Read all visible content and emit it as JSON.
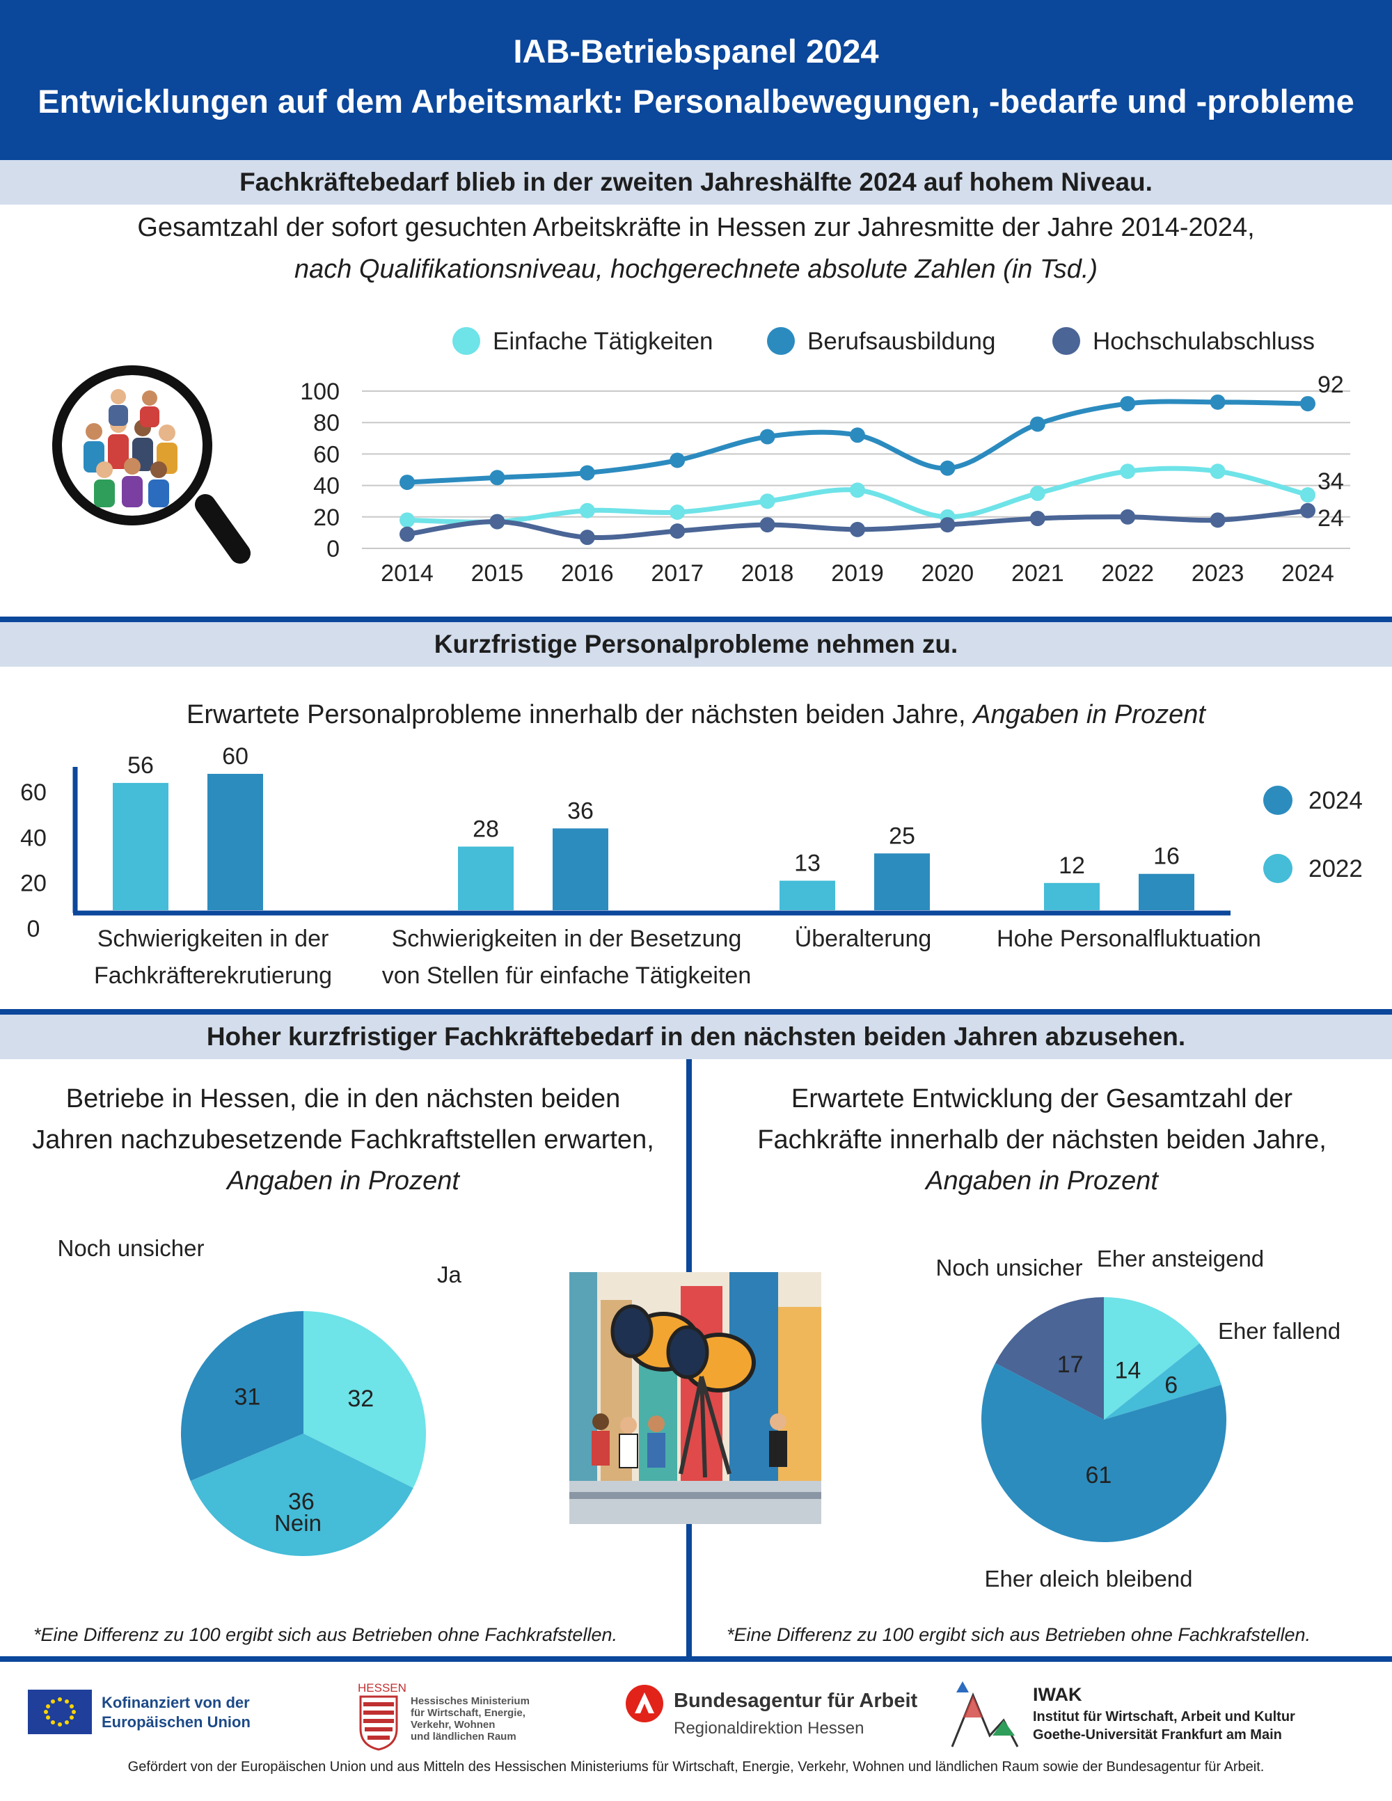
{
  "header": {
    "title": "IAB-Betriebspanel 2024",
    "subtitle": "Entwicklungen auf dem Arbeitsmarkt: Personalbewegungen, -bedarfe und -probleme"
  },
  "section1": {
    "band": "Fachkräftebedarf blieb in der zweiten Jahreshälfte 2024 auf hohem Niveau.",
    "caption_line1": "Gesamtzahl der sofort gesuchten Arbeitskräfte in Hessen zur Jahresmitte der Jahre 2014-2024,",
    "caption_line2": "nach Qualifikationsniveau, hochgerechnete absolute Zahlen (in Tsd.)"
  },
  "section2": {
    "band": "Kurzfristige Personalprobleme nehmen zu.",
    "caption_main": "Erwartete Personalprobleme innerhalb der nächsten beiden Jahre, ",
    "caption_italic": "Angaben in Prozent"
  },
  "section3": {
    "band": "Hoher kurzfristiger Fachkräftebedarf in den nächsten beiden Jahren abzusehen.",
    "left_caption_1": "Betriebe in Hessen, die in den nächsten beiden",
    "left_caption_2": "Jahren nachzubesetzende Fachkraftstellen erwarten,",
    "left_caption_3": "Angaben in Prozent",
    "right_caption_1": "Erwartete Entwicklung der Gesamtzahl der",
    "right_caption_2": "Fachkräfte innerhalb der nächsten beiden Jahre,",
    "right_caption_3": "Angaben in Prozent",
    "footnote_left": "*Eine Differenz zu 100 ergibt sich aus Betrieben ohne Fachkrafstellen.",
    "footnote_right": "*Eine Differenz zu 100 ergibt sich aus Betrieben ohne Fachkrafstellen."
  },
  "footer": {
    "eu_line1": "Kofinanziert von der",
    "eu_line2": "Europäischen Union",
    "hessen_top": "HESSEN",
    "hessen_1": "Hessisches Ministerium",
    "hessen_2": "für Wirtschaft, Energie,",
    "hessen_3": "Verkehr, Wohnen",
    "hessen_4": "und ländlichen Raum",
    "ba_1": "Bundesagentur für Arbeit",
    "ba_2": "Regionaldirektion Hessen",
    "iwak_1": "IWAK",
    "iwak_2": "Institut für Wirtschaft, Arbeit und Kultur",
    "iwak_3": "Goethe-Universität Frankfurt am Main",
    "funding": "Gefördert von der Europäischen Union und aus Mitteln des Hessischen Ministeriums für Wirtschaft, Energie, Verkehr, Wohnen und ländlichen Raum sowie der Bundesagentur für Arbeit."
  },
  "colors": {
    "header": "#0b479b",
    "band": "#d3ddec",
    "einfach": "#6ee3e8",
    "beruf": "#2b8bbf",
    "hochschule": "#4a6596",
    "bar2022": "#45bcd8",
    "bar2024": "#2c8cbe"
  },
  "chart_data": [
    {
      "type": "line",
      "x": [
        "2014",
        "2015",
        "2016",
        "2017",
        "2018",
        "2019",
        "2020",
        "2021",
        "2022",
        "2023",
        "2024"
      ],
      "ylim": [
        0,
        100
      ],
      "yticks": [
        "100",
        "80",
        "60",
        "40",
        "20",
        "0"
      ],
      "series": [
        {
          "name": "Einfache Tätigkeiten",
          "color": "#6ee3e8",
          "values": [
            18,
            17,
            24,
            23,
            30,
            37,
            20,
            35,
            49,
            49,
            34
          ],
          "end_label": "34"
        },
        {
          "name": "Berufsausbildung",
          "color": "#2b8bbf",
          "values": [
            42,
            45,
            48,
            56,
            71,
            72,
            51,
            79,
            92,
            93,
            92
          ],
          "end_label": "92"
        },
        {
          "name": "Hochschulabschluss",
          "color": "#4a6596",
          "values": [
            9,
            17,
            7,
            11,
            15,
            12,
            15,
            19,
            20,
            18,
            24
          ],
          "end_label": "24"
        }
      ]
    },
    {
      "type": "bar",
      "ylim": [
        0,
        60
      ],
      "yticks": [
        "60",
        "40",
        "20",
        "0"
      ],
      "categories": [
        {
          "line1": "Schwierigkeiten in der",
          "line2": "Fachkräfterekrutierung"
        },
        {
          "line1": "Schwierigkeiten in der Besetzung",
          "line2": "von Stellen für einfache Tätigkeiten"
        },
        {
          "line1": "Überalterung",
          "line2": ""
        },
        {
          "line1": "Hohe Personalfluktuation",
          "line2": ""
        }
      ],
      "series": [
        {
          "name": "2022",
          "color": "#45bcd8",
          "values": [
            56,
            28,
            13,
            12
          ]
        },
        {
          "name": "2024",
          "color": "#2c8cbe",
          "values": [
            60,
            36,
            25,
            16
          ]
        }
      ]
    },
    {
      "type": "pie",
      "slices": [
        {
          "label": "Ja",
          "value": 32,
          "color": "#6ee3e8"
        },
        {
          "label": "Nein",
          "value": 36,
          "color": "#45bcd8"
        },
        {
          "label": "Noch unsicher",
          "value": 31,
          "color": "#2c8cbe"
        }
      ]
    },
    {
      "type": "pie",
      "slices": [
        {
          "label": "Eher ansteigend",
          "value": 14,
          "color": "#6ee3e8"
        },
        {
          "label": "Eher fallend",
          "value": 6,
          "color": "#45bcd8"
        },
        {
          "label": "Eher gleich bleibend",
          "value": 61,
          "color": "#2c8cbe"
        },
        {
          "label": "Noch unsicher",
          "value": 17,
          "color": "#4a6596"
        }
      ]
    }
  ]
}
